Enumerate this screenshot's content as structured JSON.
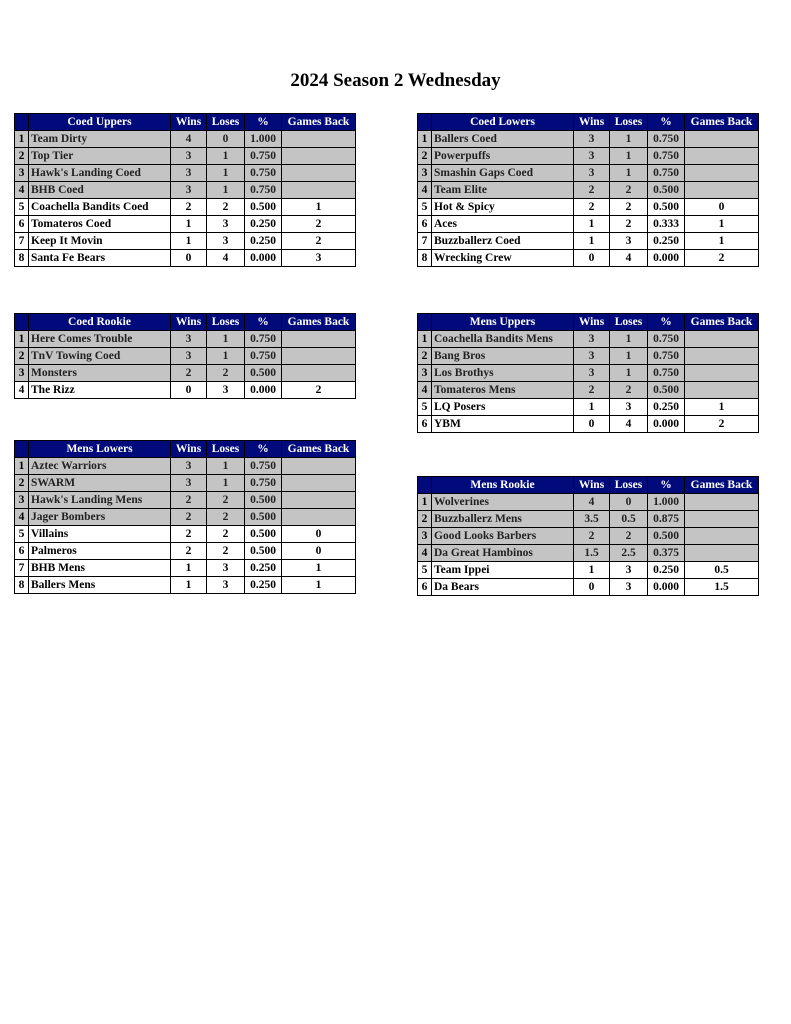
{
  "title": "2024 Season 2 Wednesday",
  "columns": [
    "Wins",
    "Loses",
    "%",
    "Games Back"
  ],
  "colors": {
    "header_bg": "#000a7a",
    "header_text": "#ffffff",
    "top_rows_bg": "#c4c4c4",
    "other_rows_bg": "#ffffff"
  },
  "tables": [
    {
      "name": "Coed Uppers",
      "rows": [
        [
          "1",
          "Team Dirty",
          "4",
          "0",
          "1.000",
          ""
        ],
        [
          "2",
          "Top Tier",
          "3",
          "1",
          "0.750",
          ""
        ],
        [
          "3",
          "Hawk's Landing Coed",
          "3",
          "1",
          "0.750",
          ""
        ],
        [
          "4",
          "BHB Coed",
          "3",
          "1",
          "0.750",
          ""
        ],
        [
          "5",
          "Coachella Bandits Coed",
          "2",
          "2",
          "0.500",
          "1"
        ],
        [
          "6",
          "Tomateros Coed",
          "1",
          "3",
          "0.250",
          "2"
        ],
        [
          "7",
          "Keep It Movin",
          "1",
          "3",
          "0.250",
          "2"
        ],
        [
          "8",
          "Santa Fe Bears",
          "0",
          "4",
          "0.000",
          "3"
        ]
      ],
      "grey_rows": 4
    },
    {
      "name": "Coed Lowers",
      "rows": [
        [
          "1",
          "Ballers Coed",
          "3",
          "1",
          "0.750",
          ""
        ],
        [
          "2",
          "Powerpuffs",
          "3",
          "1",
          "0.750",
          ""
        ],
        [
          "3",
          "Smashin Gaps Coed",
          "3",
          "1",
          "0.750",
          ""
        ],
        [
          "4",
          "Team Elite",
          "2",
          "2",
          "0.500",
          ""
        ],
        [
          "5",
          "Hot & Spicy",
          "2",
          "2",
          "0.500",
          "0"
        ],
        [
          "6",
          "Aces",
          "1",
          "2",
          "0.333",
          "1"
        ],
        [
          "7",
          "Buzzballerz Coed",
          "1",
          "3",
          "0.250",
          "1"
        ],
        [
          "8",
          "Wrecking Crew",
          "0",
          "4",
          "0.000",
          "2"
        ]
      ],
      "grey_rows": 4
    },
    {
      "name": "Coed Rookie",
      "rows": [
        [
          "1",
          "Here Comes Trouble",
          "3",
          "1",
          "0.750",
          ""
        ],
        [
          "2",
          "TnV Towing Coed",
          "3",
          "1",
          "0.750",
          ""
        ],
        [
          "3",
          "Monsters",
          "2",
          "2",
          "0.500",
          ""
        ],
        [
          "4",
          "The Rizz",
          "0",
          "3",
          "0.000",
          "2"
        ]
      ],
      "grey_rows": 3
    },
    {
      "name": "Mens Uppers",
      "rows": [
        [
          "1",
          "Coachella Bandits Mens",
          "3",
          "1",
          "0.750",
          ""
        ],
        [
          "2",
          "Bang Bros",
          "3",
          "1",
          "0.750",
          ""
        ],
        [
          "3",
          "Los Brothys",
          "3",
          "1",
          "0.750",
          ""
        ],
        [
          "4",
          "Tomateros Mens",
          "2",
          "2",
          "0.500",
          ""
        ],
        [
          "5",
          "LQ Posers",
          "1",
          "3",
          "0.250",
          "1"
        ],
        [
          "6",
          "YBM",
          "0",
          "4",
          "0.000",
          "2"
        ]
      ],
      "grey_rows": 4
    },
    {
      "name": "Mens Lowers",
      "rows": [
        [
          "1",
          "Aztec Warriors",
          "3",
          "1",
          "0.750",
          ""
        ],
        [
          "2",
          "SWARM",
          "3",
          "1",
          "0.750",
          ""
        ],
        [
          "3",
          "Hawk's Landing Mens",
          "2",
          "2",
          "0.500",
          ""
        ],
        [
          "4",
          "Jager Bombers",
          "2",
          "2",
          "0.500",
          ""
        ],
        [
          "5",
          "Villains",
          "2",
          "2",
          "0.500",
          "0"
        ],
        [
          "6",
          "Palmeros",
          "2",
          "2",
          "0.500",
          "0"
        ],
        [
          "7",
          "BHB Mens",
          "1",
          "3",
          "0.250",
          "1"
        ],
        [
          "8",
          "Ballers Mens",
          "1",
          "3",
          "0.250",
          "1"
        ]
      ],
      "grey_rows": 4
    },
    {
      "name": "Mens Rookie",
      "rows": [
        [
          "1",
          "Wolverines",
          "4",
          "0",
          "1.000",
          ""
        ],
        [
          "2",
          "Buzzballerz Mens",
          "3.5",
          "0.5",
          "0.875",
          ""
        ],
        [
          "3",
          "Good Looks Barbers",
          "2",
          "2",
          "0.500",
          ""
        ],
        [
          "4",
          "Da Great Hambinos",
          "1.5",
          "2.5",
          "0.375",
          ""
        ],
        [
          "5",
          "Team Ippei",
          "1",
          "3",
          "0.250",
          "0.5"
        ],
        [
          "6",
          "Da Bears",
          "0",
          "3",
          "0.000",
          "1.5"
        ]
      ],
      "grey_rows": 4
    }
  ]
}
